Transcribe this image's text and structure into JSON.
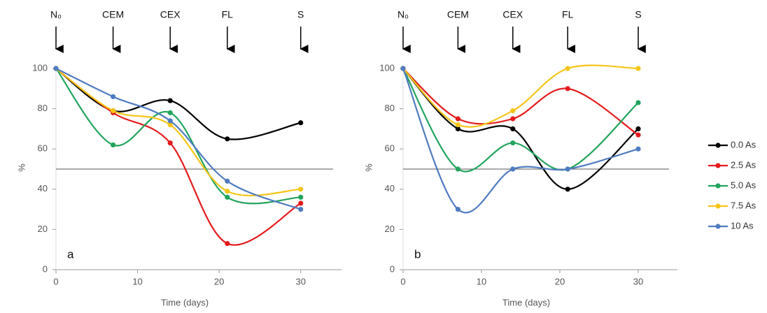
{
  "chart_data": [
    {
      "type": "line",
      "x_label": "Time (days)",
      "y_label": "%",
      "panel_label": "a",
      "x": [
        0,
        7,
        14,
        21,
        30
      ],
      "xlim": [
        0,
        35
      ],
      "xticks": [
        0,
        10,
        20,
        30
      ],
      "ylim": [
        0,
        100
      ],
      "yticks": [
        0,
        20,
        40,
        60,
        80,
        100
      ],
      "hline": 50,
      "smooth": true,
      "annotations": [
        {
          "x": 0,
          "text": "N₀"
        },
        {
          "x": 7,
          "text": "CEM"
        },
        {
          "x": 14,
          "text": "CEX"
        },
        {
          "x": 21,
          "text": "FL"
        },
        {
          "x": 30,
          "text": "S"
        }
      ],
      "series": [
        {
          "color": "#000000",
          "values": [
            100,
            79,
            84,
            65,
            73
          ]
        },
        {
          "color": "#e41a1c",
          "values": [
            100,
            78,
            63,
            13,
            33
          ]
        },
        {
          "color": "#22a45d",
          "values": [
            100,
            62,
            78,
            36,
            36
          ]
        },
        {
          "color": "#f5c518",
          "values": [
            100,
            79,
            72,
            39,
            40
          ]
        },
        {
          "color": "#4f7bc0",
          "values": [
            100,
            86,
            74,
            44,
            30
          ]
        }
      ]
    },
    {
      "type": "line",
      "x_label": "Time (days)",
      "y_label": "%",
      "panel_label": "b",
      "x": [
        0,
        7,
        14,
        21,
        30
      ],
      "xlim": [
        0,
        35
      ],
      "xticks": [
        0,
        10,
        20,
        30
      ],
      "ylim": [
        0,
        100
      ],
      "yticks": [
        0,
        20,
        40,
        60,
        80,
        100
      ],
      "hline": 50,
      "smooth": true,
      "legend": "right",
      "annotations": [
        {
          "x": 0,
          "text": "N₀"
        },
        {
          "x": 7,
          "text": "CEM"
        },
        {
          "x": 14,
          "text": "CEX"
        },
        {
          "x": 21,
          "text": "FL"
        },
        {
          "x": 30,
          "text": "S"
        }
      ],
      "series": [
        {
          "name": "0.0 As",
          "color": "#000000",
          "values": [
            100,
            70,
            70,
            40,
            70
          ]
        },
        {
          "name": "2.5 As",
          "color": "#e41a1c",
          "values": [
            100,
            75,
            75,
            90,
            67
          ]
        },
        {
          "name": "5.0 As",
          "color": "#22a45d",
          "values": [
            100,
            50,
            63,
            50,
            83
          ]
        },
        {
          "name": "7.5 As",
          "color": "#f5c518",
          "values": [
            100,
            72,
            79,
            100,
            100
          ]
        },
        {
          "name": "10 As",
          "color": "#4f7bc0",
          "values": [
            100,
            30,
            50,
            50,
            60
          ]
        }
      ]
    }
  ]
}
